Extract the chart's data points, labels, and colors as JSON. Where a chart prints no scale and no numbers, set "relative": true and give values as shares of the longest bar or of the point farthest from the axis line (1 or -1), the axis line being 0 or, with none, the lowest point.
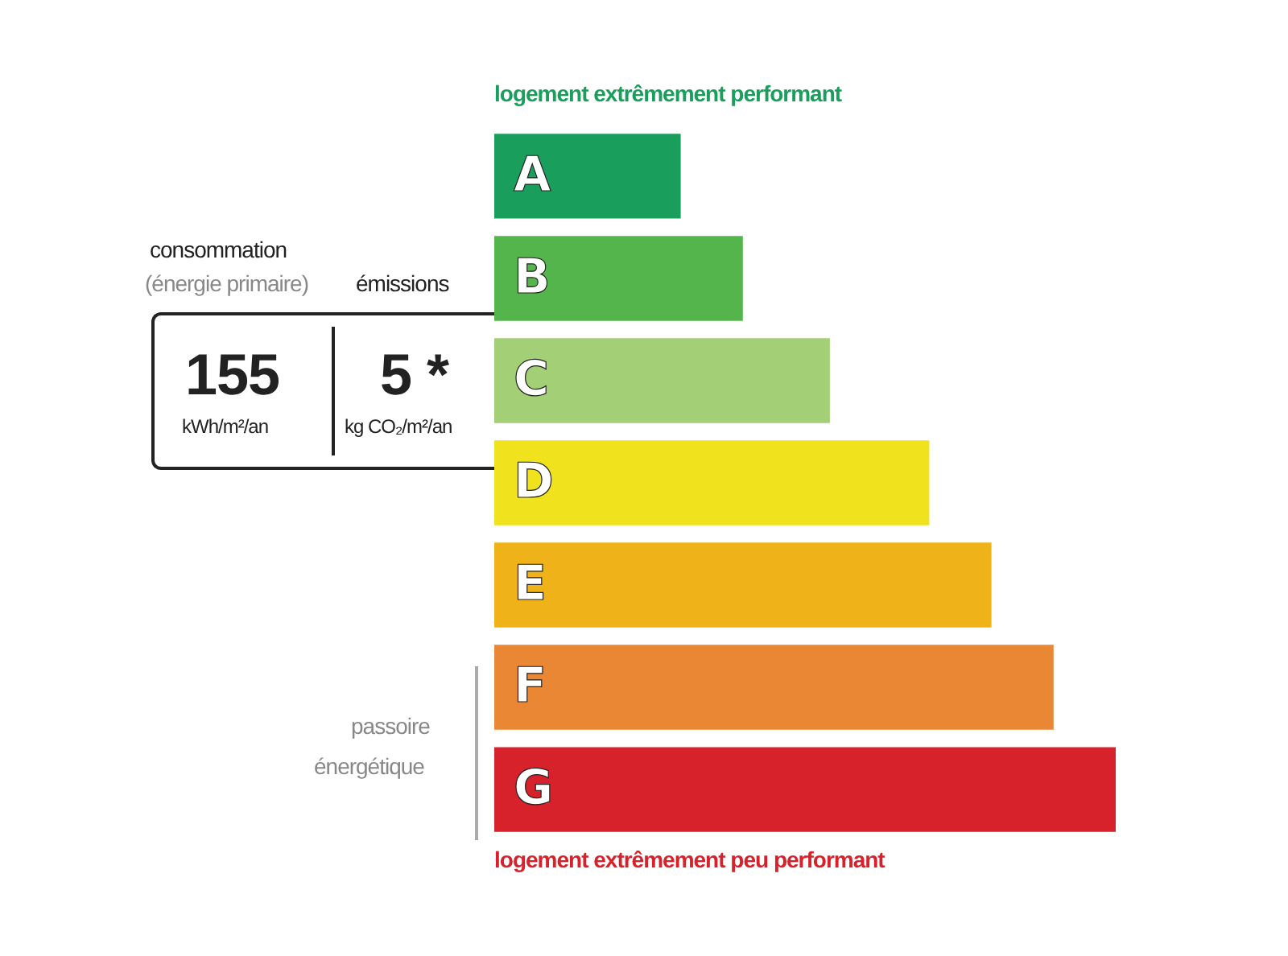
{
  "chart_data": {
    "type": "bar",
    "orientation": "horizontal",
    "relative": true,
    "categories": [
      "A",
      "B",
      "C",
      "D",
      "E",
      "F",
      "G"
    ],
    "values": [
      0.3,
      0.4,
      0.54,
      0.7,
      0.8,
      0.9,
      1
    ],
    "colors": [
      "#1a9e5c",
      "#55b54d",
      "#a3cf76",
      "#f0e21c",
      "#efb319",
      "#ea8734",
      "#d8222b"
    ],
    "annotations": [
      "logement extrêmement performant",
      "consommation",
      "(énergie primaire)",
      "émissions",
      "155",
      "kWh/m²/an",
      "5 *",
      "kg CO₂/m²/an",
      "passoire",
      "énergétique",
      "logement extrêmement peu performant"
    ]
  }
}
